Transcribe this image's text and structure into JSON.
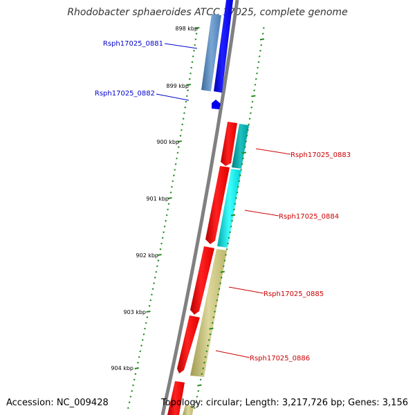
{
  "title": "Rhodobacter sphaeroides ATCC 17025, complete genome",
  "footer": {
    "accession": "Accession: NC_009428",
    "meta": "Topology: circular; Length: 3,217,726 bp; Genes: 3,156"
  },
  "colors": {
    "backbone": "#808080",
    "tick": "#228b22",
    "label_forward": "#0000cc",
    "label_reverse": "#cc0000",
    "tick_label": "#000000"
  },
  "ticks": [
    {
      "label": "898 kbp"
    },
    {
      "label": "899 kbp"
    },
    {
      "label": "900 kbp"
    },
    {
      "label": "901 kbp"
    },
    {
      "label": "902 kbp"
    },
    {
      "label": "903 kbp"
    },
    {
      "label": "904 kbp"
    }
  ],
  "genes": [
    {
      "locus": "Rsph17025_0881",
      "strand": "forward"
    },
    {
      "locus": "Rsph17025_0882",
      "strand": "forward"
    },
    {
      "locus": "Rsph17025_0883",
      "strand": "reverse"
    },
    {
      "locus": "Rsph17025_0884",
      "strand": "reverse"
    },
    {
      "locus": "Rsph17025_0885",
      "strand": "reverse"
    },
    {
      "locus": "Rsph17025_0886",
      "strand": "reverse"
    }
  ]
}
